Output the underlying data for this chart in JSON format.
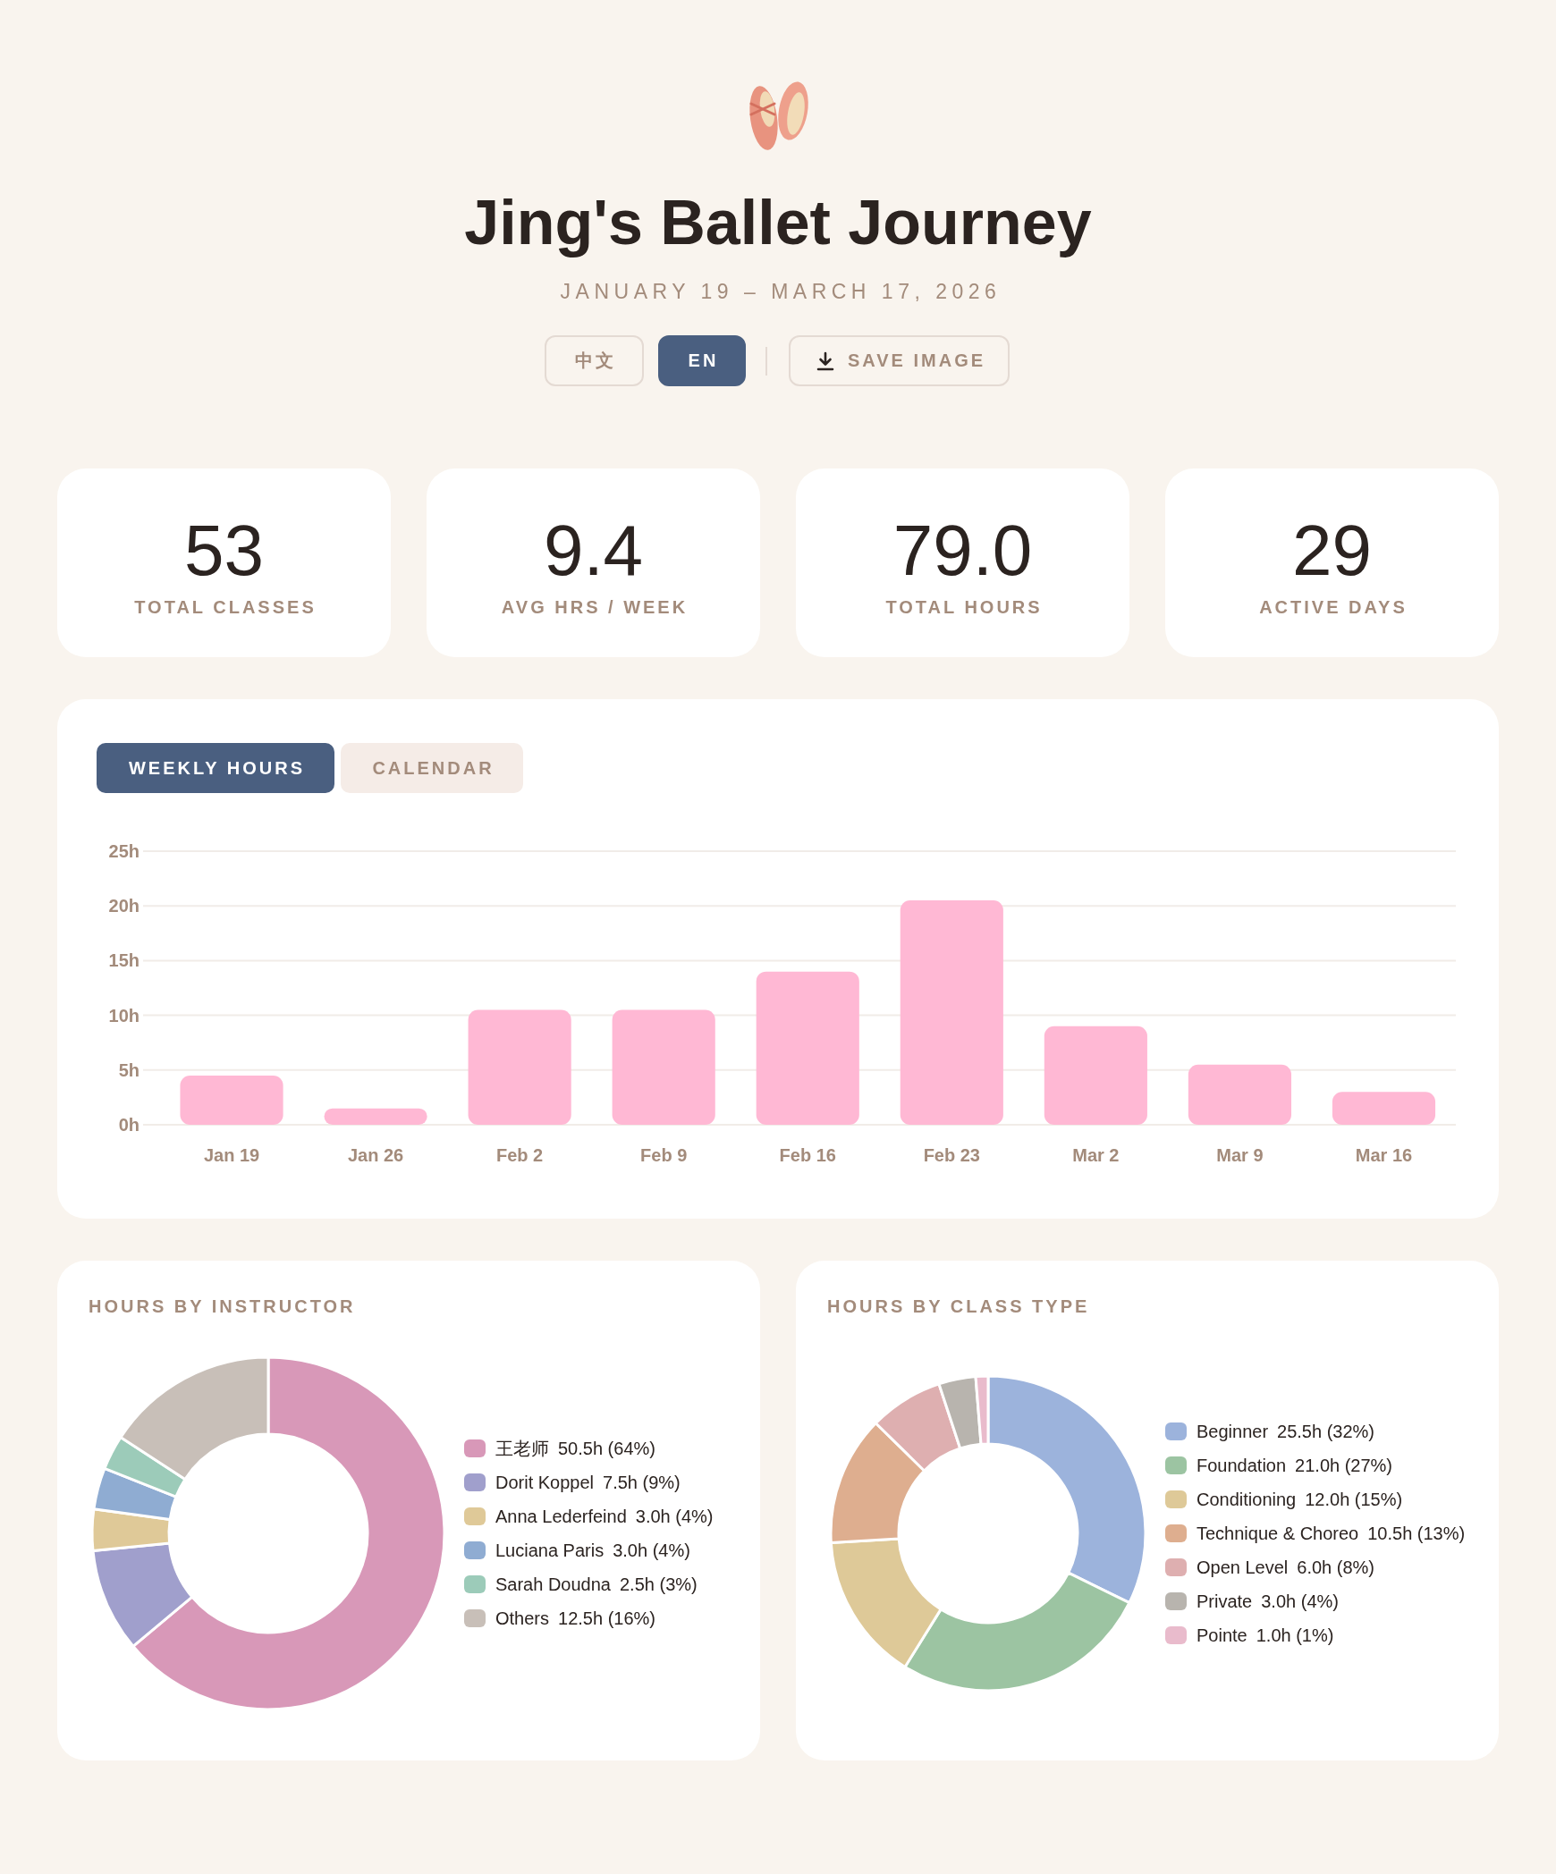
{
  "chart_data": [
    {
      "type": "other",
      "title": "Jing's Ballet Journey",
      "subtitle": "JANUARY 19 – MARCH 17, 2026",
      "annotations": [
        "中文",
        "EN",
        "SAVE IMAGE"
      ]
    },
    {
      "type": "other",
      "annotations": [
        "53",
        "TOTAL CLASSES",
        "9.4",
        "AVG HRS / WEEK",
        "79.0",
        "TOTAL HOURS",
        "29",
        "ACTIVE DAYS"
      ]
    },
    {
      "type": "bar",
      "title": "WEEKLY HOURS",
      "annotations": [
        "CALENDAR"
      ],
      "categories": [
        "Jan 19",
        "Jan 26",
        "Feb 2",
        "Feb 9",
        "Feb 16",
        "Feb 23",
        "Mar 2",
        "Mar 9",
        "Mar 16"
      ],
      "values": [
        4.5,
        1.5,
        10.5,
        10.5,
        14.0,
        20.5,
        9.0,
        5.5,
        3.0
      ],
      "color": "#ffb8d4",
      "ylim": [
        0,
        25
      ],
      "yticks": [
        {
          "value": 0,
          "label": "0h"
        },
        {
          "value": 5,
          "label": "5h"
        },
        {
          "value": 10,
          "label": "10h"
        },
        {
          "value": 15,
          "label": "15h"
        },
        {
          "value": 20,
          "label": "20h"
        },
        {
          "value": 25,
          "label": "25h"
        }
      ],
      "grid": "y"
    },
    {
      "type": "donut",
      "title": "HOURS BY INSTRUCTOR",
      "categories": [
        "王老师",
        "Dorit Koppel",
        "Anna Lederfeind",
        "Luciana Paris",
        "Sarah Doudna",
        "Others"
      ],
      "values": [
        50.5,
        7.5,
        3.0,
        3.0,
        2.5,
        12.5
      ],
      "colors": [
        "#d898b8",
        "#a09fcc",
        "#dfc998",
        "#8facd2",
        "#9ccbb9",
        "#c8bfb8"
      ],
      "value_labels": [
        "50.5h (64%)",
        "7.5h (9%)",
        "3.0h (4%)",
        "3.0h (4%)",
        "2.5h (3%)",
        "12.5h (16%)"
      ],
      "legend": "right"
    },
    {
      "type": "donut",
      "title": "HOURS BY CLASS TYPE",
      "categories": [
        "Beginner",
        "Foundation",
        "Conditioning",
        "Technique & Choreo",
        "Open Level",
        "Private",
        "Pointe"
      ],
      "values": [
        25.5,
        21.0,
        12.0,
        10.5,
        6.0,
        3.0,
        1.0
      ],
      "colors": [
        "#9cb3dc",
        "#9cc4a2",
        "#dec998",
        "#deae8f",
        "#deafb0",
        "#b8b4ae",
        "#e9bbcc"
      ],
      "value_labels": [
        "25.5h (32%)",
        "21.0h (27%)",
        "12.0h (15%)",
        "10.5h (13%)",
        "6.0h (8%)",
        "3.0h (4%)",
        "1.0h (1%)"
      ],
      "legend": "right"
    }
  ]
}
